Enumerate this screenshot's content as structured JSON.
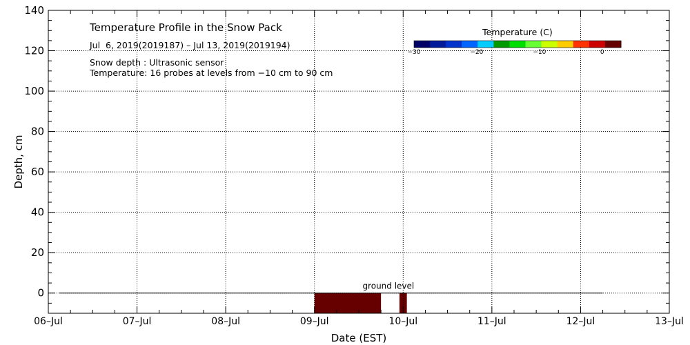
{
  "chart_data": {
    "type": "heatmap",
    "title": "Temperature Profile in the Snow Pack",
    "subtitle": "Jul  6, 2019(2019187) – Jul 13, 2019(2019194)",
    "notes": [
      "Snow depth : Ultrasonic sensor",
      "Temperature: 16 probes at levels from −10 cm to 90 cm"
    ],
    "xlabel": "Date (EST)",
    "ylabel": "Depth, cm",
    "x_ticks": [
      "06–Jul",
      "07–Jul",
      "08–Jul",
      "09–Jul",
      "10–Jul",
      "11–Jul",
      "12–Jul",
      "13–Jul"
    ],
    "y_ticks": [
      0,
      20,
      40,
      60,
      80,
      100,
      120,
      140
    ],
    "xlim": [
      "2019-07-06",
      "2019-07-13"
    ],
    "ylim": [
      -10,
      140
    ],
    "grid": true,
    "ground_level": {
      "label": "ground level",
      "y": 0,
      "x_start": "2019-07-06 03:00",
      "x_end": "2019-07-12 06:00"
    },
    "cells": [
      {
        "x_start": "2019-07-09 00:00",
        "x_end": "2019-07-09 18:00",
        "y_start": -10,
        "y_end": 0,
        "value": 1.5
      },
      {
        "x_start": "2019-07-09 23:00",
        "x_end": "2019-07-10 01:00",
        "y_start": -10,
        "y_end": 0,
        "value": 1.5
      }
    ],
    "colorbar": {
      "title": "Temperature (C)",
      "tick_labels": [
        "−30",
        "−20",
        "−10",
        "0"
      ],
      "tick_values": [
        -30,
        -20,
        -10,
        0
      ],
      "range": [
        -30,
        3
      ],
      "colors": [
        "#000066",
        "#001a99",
        "#0033cc",
        "#0066ff",
        "#00ccff",
        "#009900",
        "#00dd00",
        "#66ff33",
        "#ccff00",
        "#ffcc00",
        "#ff3300",
        "#cc0000",
        "#660000"
      ]
    }
  }
}
